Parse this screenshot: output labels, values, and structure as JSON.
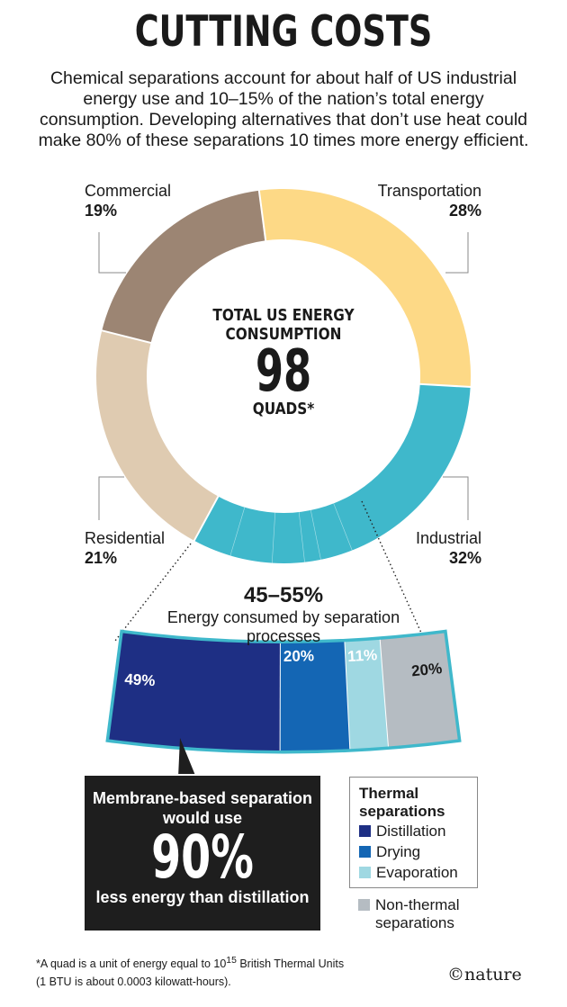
{
  "header": {
    "title": "CUTTING COSTS",
    "intro": "Chemical separations account for about half of US industrial energy use and 10–15% of the nation’s total energy consumption. Developing alternatives that don’t use heat could make 80% of these separations 10 times more energy efficient."
  },
  "chart_data": [
    {
      "type": "pie",
      "title": "TOTAL US ENERGY CONSUMPTION",
      "center_value": "98",
      "center_unit": "QUADS*",
      "slices": [
        {
          "name": "Transportation",
          "value": 28,
          "label": "28%",
          "color": "#fdd986"
        },
        {
          "name": "Industrial",
          "value": 32,
          "label": "32%",
          "color": "#3fb8cb"
        },
        {
          "name": "Residential",
          "value": 21,
          "label": "21%",
          "color": "#dfcbb1"
        },
        {
          "name": "Commercial",
          "value": 19,
          "label": "19%",
          "color": "#9c8573"
        }
      ]
    },
    {
      "type": "bar",
      "range_label": "45–55%",
      "description": "Energy consumed by separation processes",
      "segments": [
        {
          "name": "Distillation",
          "value": 49,
          "label": "49%",
          "color": "#1e2f84"
        },
        {
          "name": "Drying",
          "value": 20,
          "label": "20%",
          "color": "#1466b4"
        },
        {
          "name": "Evaporation",
          "value": 11,
          "label": "11%",
          "color": "#9fd8e2"
        },
        {
          "name": "Non-thermal separations",
          "value": 20,
          "label": "20%",
          "color": "#b5bcc2"
        }
      ],
      "border_color": "#3fb8cb"
    }
  ],
  "callout": {
    "line1": "Membrane-based separation would use",
    "big": "90%",
    "line3": "less energy than distillation"
  },
  "legend": {
    "heading": "Thermal separations",
    "items": [
      "Distillation",
      "Drying",
      "Evaporation"
    ],
    "outside_item": "Non-thermal separations"
  },
  "footnote": {
    "line1_pre": "*A quad is a unit of energy equal to 10",
    "line1_sup": "15",
    "line1_post": " British Thermal Units",
    "line2": "(1 BTU is about 0.0003 kilowatt-hours)."
  },
  "logo": "©nature"
}
